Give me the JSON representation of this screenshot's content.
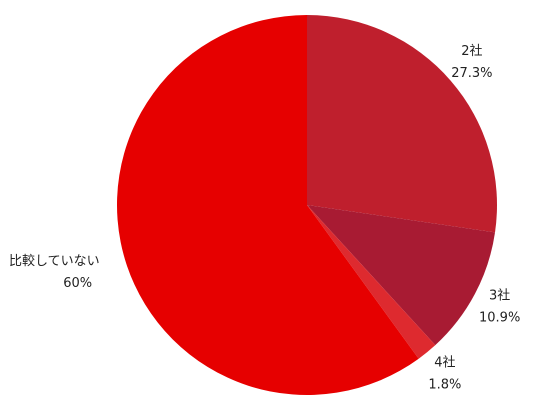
{
  "chart_data": {
    "type": "pie",
    "categories": [
      "2社",
      "3社",
      "4社",
      "比較していない"
    ],
    "values": [
      27.3,
      10.9,
      1.8,
      60
    ],
    "value_labels": [
      "27.3%",
      "10.9%",
      "1.8%",
      "60%"
    ],
    "colors": [
      "#bf1f2d",
      "#a81b33",
      "#de2a2f",
      "#e60000"
    ]
  }
}
